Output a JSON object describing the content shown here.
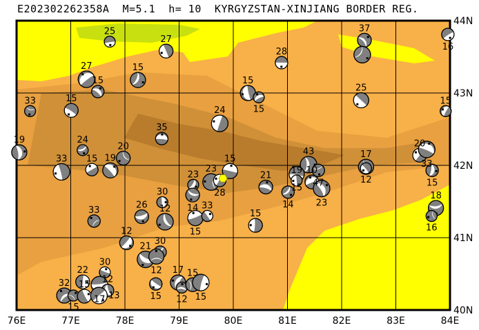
{
  "title": "E202302262358A  M=5.1  h= 10  KYRGYZSTAN-XINJIANG BORDER REG.",
  "map": {
    "lon_range": [
      76,
      84
    ],
    "lat_range": [
      40,
      44
    ],
    "lon_labels": [
      "76E",
      "77E",
      "78E",
      "79E",
      "80E",
      "81E",
      "82E",
      "83E",
      "84E"
    ],
    "lat_labels": [
      "40N",
      "41N",
      "42N",
      "43N",
      "44N"
    ],
    "colors": {
      "lowland": "#ffff00",
      "green": "#c8e010",
      "orange": "#f8b048",
      "tan": "#e8a040",
      "brown": "#d09038",
      "dark_brown": "#b87c2c",
      "ball_compression": "#808080",
      "epicenter": "#ffff00"
    },
    "epicenter": {
      "lon": 79.81,
      "lat": 41.82
    },
    "events": [
      {
        "lon": 77.72,
        "lat": 43.71,
        "depth": "25"
      },
      {
        "lon": 78.76,
        "lat": 43.58,
        "depth": "27"
      },
      {
        "lon": 77.29,
        "lat": 43.19,
        "depth": "27"
      },
      {
        "lon": 77.5,
        "lat": 43.02,
        "depth": "15"
      },
      {
        "lon": 78.24,
        "lat": 43.18,
        "depth": "15"
      },
      {
        "lon": 76.25,
        "lat": 42.75,
        "depth": "33"
      },
      {
        "lon": 77.01,
        "lat": 42.76,
        "depth": "15"
      },
      {
        "lon": 79.75,
        "lat": 42.58,
        "depth": "24"
      },
      {
        "lon": 78.68,
        "lat": 42.37,
        "depth": "35"
      },
      {
        "lon": 76.05,
        "lat": 42.18,
        "depth": "19"
      },
      {
        "lon": 77.22,
        "lat": 42.21,
        "depth": "24"
      },
      {
        "lon": 77.97,
        "lat": 42.1,
        "depth": "20"
      },
      {
        "lon": 76.83,
        "lat": 41.91,
        "depth": "33"
      },
      {
        "lon": 77.39,
        "lat": 41.94,
        "depth": "15"
      },
      {
        "lon": 77.73,
        "lat": 41.93,
        "depth": "19"
      },
      {
        "lon": 79.26,
        "lat": 41.73,
        "depth": "23"
      },
      {
        "lon": 79.25,
        "lat": 41.59,
        "depth": "14"
      },
      {
        "lon": 79.59,
        "lat": 41.77,
        "depth": "23"
      },
      {
        "lon": 79.75,
        "lat": 41.79,
        "depth": "28"
      },
      {
        "lon": 79.94,
        "lat": 41.92,
        "depth": "15"
      },
      {
        "lon": 78.69,
        "lat": 41.49,
        "depth": "30"
      },
      {
        "lon": 78.31,
        "lat": 41.29,
        "depth": "26"
      },
      {
        "lon": 78.74,
        "lat": 41.22,
        "depth": "12"
      },
      {
        "lon": 77.43,
        "lat": 41.23,
        "depth": "33"
      },
      {
        "lon": 79.3,
        "lat": 41.27,
        "depth": "15"
      },
      {
        "lon": 79.52,
        "lat": 41.3,
        "depth": "33"
      },
      {
        "lon": 78.03,
        "lat": 40.93,
        "depth": "12"
      },
      {
        "lon": 78.38,
        "lat": 40.7,
        "depth": "21"
      },
      {
        "lon": 78.65,
        "lat": 40.8,
        "depth": "30"
      },
      {
        "lon": 78.58,
        "lat": 40.74,
        "depth": "12"
      },
      {
        "lon": 77.63,
        "lat": 40.52,
        "depth": "30"
      },
      {
        "lon": 77.22,
        "lat": 40.39,
        "depth": "22"
      },
      {
        "lon": 77.53,
        "lat": 40.35,
        "depth": "17"
      },
      {
        "lon": 77.68,
        "lat": 40.27,
        "depth": "12"
      },
      {
        "lon": 76.88,
        "lat": 40.2,
        "depth": "32"
      },
      {
        "lon": 77.05,
        "lat": 40.2,
        "depth": "15"
      },
      {
        "lon": 77.25,
        "lat": 40.19,
        "depth": "15"
      },
      {
        "lon": 77.52,
        "lat": 40.2,
        "depth": "13"
      },
      {
        "lon": 78.57,
        "lat": 40.36,
        "depth": "15"
      },
      {
        "lon": 78.98,
        "lat": 40.38,
        "depth": "17"
      },
      {
        "lon": 79.05,
        "lat": 40.31,
        "depth": "12"
      },
      {
        "lon": 79.25,
        "lat": 40.35,
        "depth": "15"
      },
      {
        "lon": 79.4,
        "lat": 40.38,
        "depth": "15"
      },
      {
        "lon": 80.89,
        "lat": 43.42,
        "depth": "28"
      },
      {
        "lon": 80.27,
        "lat": 43.0,
        "depth": "15"
      },
      {
        "lon": 80.47,
        "lat": 42.94,
        "depth": "15"
      },
      {
        "lon": 82.42,
        "lat": 43.73,
        "depth": "37"
      },
      {
        "lon": 82.38,
        "lat": 43.53,
        "depth": ""
      },
      {
        "lon": 83.96,
        "lat": 43.81,
        "depth": "16"
      },
      {
        "lon": 82.36,
        "lat": 42.9,
        "depth": "25"
      },
      {
        "lon": 83.92,
        "lat": 42.75,
        "depth": "15"
      },
      {
        "lon": 80.6,
        "lat": 41.7,
        "depth": "21"
      },
      {
        "lon": 81.39,
        "lat": 42.01,
        "depth": "43"
      },
      {
        "lon": 81.57,
        "lat": 41.93,
        "depth": "47"
      },
      {
        "lon": 81.17,
        "lat": 41.88,
        "depth": "15"
      },
      {
        "lon": 81.17,
        "lat": 41.79,
        "depth": "19"
      },
      {
        "lon": 81.45,
        "lat": 41.77,
        "depth": "10"
      },
      {
        "lon": 81.63,
        "lat": 41.68,
        "depth": "23"
      },
      {
        "lon": 81.01,
        "lat": 41.63,
        "depth": "14"
      },
      {
        "lon": 82.45,
        "lat": 41.98,
        "depth": "17"
      },
      {
        "lon": 82.45,
        "lat": 41.96,
        "depth": "12"
      },
      {
        "lon": 83.44,
        "lat": 42.14,
        "depth": "20"
      },
      {
        "lon": 83.57,
        "lat": 42.22,
        "depth": "33"
      },
      {
        "lon": 83.67,
        "lat": 41.93,
        "depth": "15"
      },
      {
        "lon": 83.74,
        "lat": 41.41,
        "depth": "18"
      },
      {
        "lon": 83.66,
        "lat": 41.3,
        "depth": "16"
      },
      {
        "lon": 80.41,
        "lat": 41.17,
        "depth": "15"
      }
    ]
  }
}
